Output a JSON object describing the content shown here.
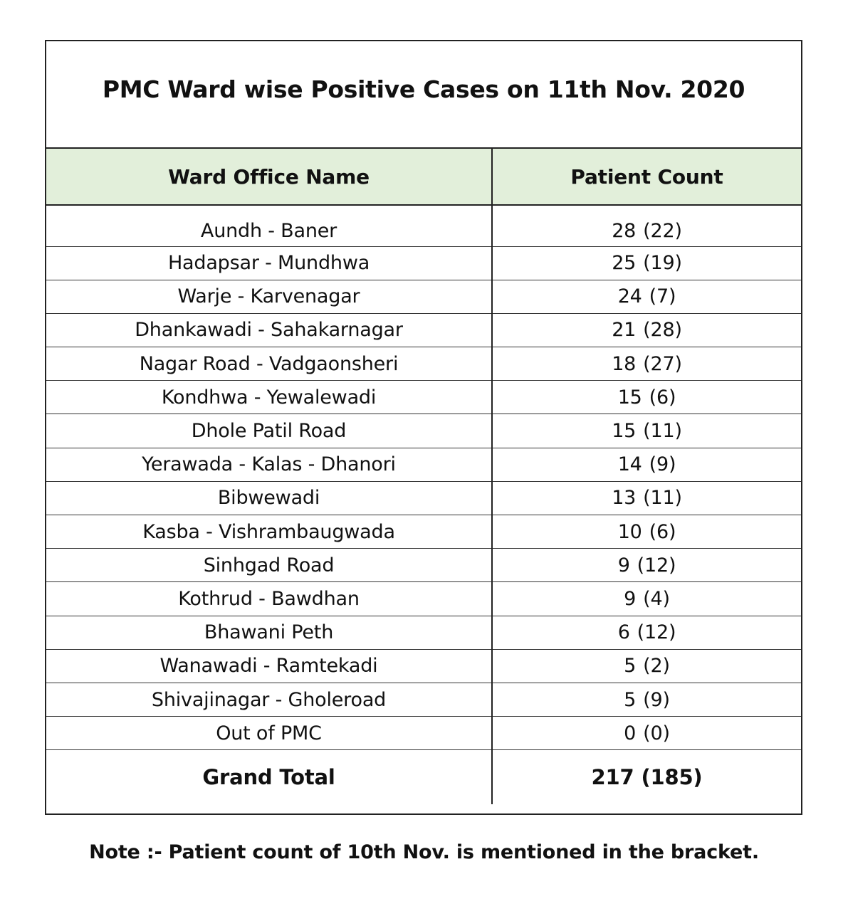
{
  "title": "PMC Ward wise Positive Cases on 11th Nov. 2020",
  "table": {
    "headers": {
      "ward": "Ward Office Name",
      "count": "Patient Count"
    },
    "rows": [
      {
        "ward": "Aundh - Baner",
        "current": "28",
        "previous": "(22)"
      },
      {
        "ward": "Hadapsar - Mundhwa",
        "current": "25",
        "previous": "(19)"
      },
      {
        "ward": "Warje - Karvenagar",
        "current": "24",
        "previous": "(7)"
      },
      {
        "ward": "Dhankawadi - Sahakarnagar",
        "current": "21",
        "previous": "(28)"
      },
      {
        "ward": "Nagar Road - Vadgaonsheri",
        "current": "18",
        "previous": "(27)"
      },
      {
        "ward": "Kondhwa - Yewalewadi",
        "current": "15",
        "previous": "(6)"
      },
      {
        "ward": "Dhole Patil Road",
        "current": "15",
        "previous": "(11)"
      },
      {
        "ward": "Yerawada - Kalas - Dhanori",
        "current": "14",
        "previous": "(9)"
      },
      {
        "ward": "Bibwewadi",
        "current": "13",
        "previous": "(11)"
      },
      {
        "ward": "Kasba - Vishrambaugwada",
        "current": "10",
        "previous": "(6)"
      },
      {
        "ward": "Sinhgad Road",
        "current": "9",
        "previous": "(12)"
      },
      {
        "ward": "Kothrud - Bawdhan",
        "current": "9",
        "previous": "(4)"
      },
      {
        "ward": "Bhawani Peth",
        "current": "6",
        "previous": "(12)"
      },
      {
        "ward": "Wanawadi - Ramtekadi",
        "current": "5",
        "previous": "(2)"
      },
      {
        "ward": "Shivajinagar - Gholeroad",
        "current": "5",
        "previous": "(9)"
      },
      {
        "ward": "Out of PMC",
        "current": "0",
        "previous": "(0)"
      }
    ],
    "total": {
      "label": "Grand Total",
      "current": "217",
      "previous": "(185)"
    }
  },
  "note": "Note :- Patient count of 10th Nov. is mentioned in the bracket.",
  "colors": {
    "header_bg": "#e2efda",
    "border": "#222222"
  }
}
